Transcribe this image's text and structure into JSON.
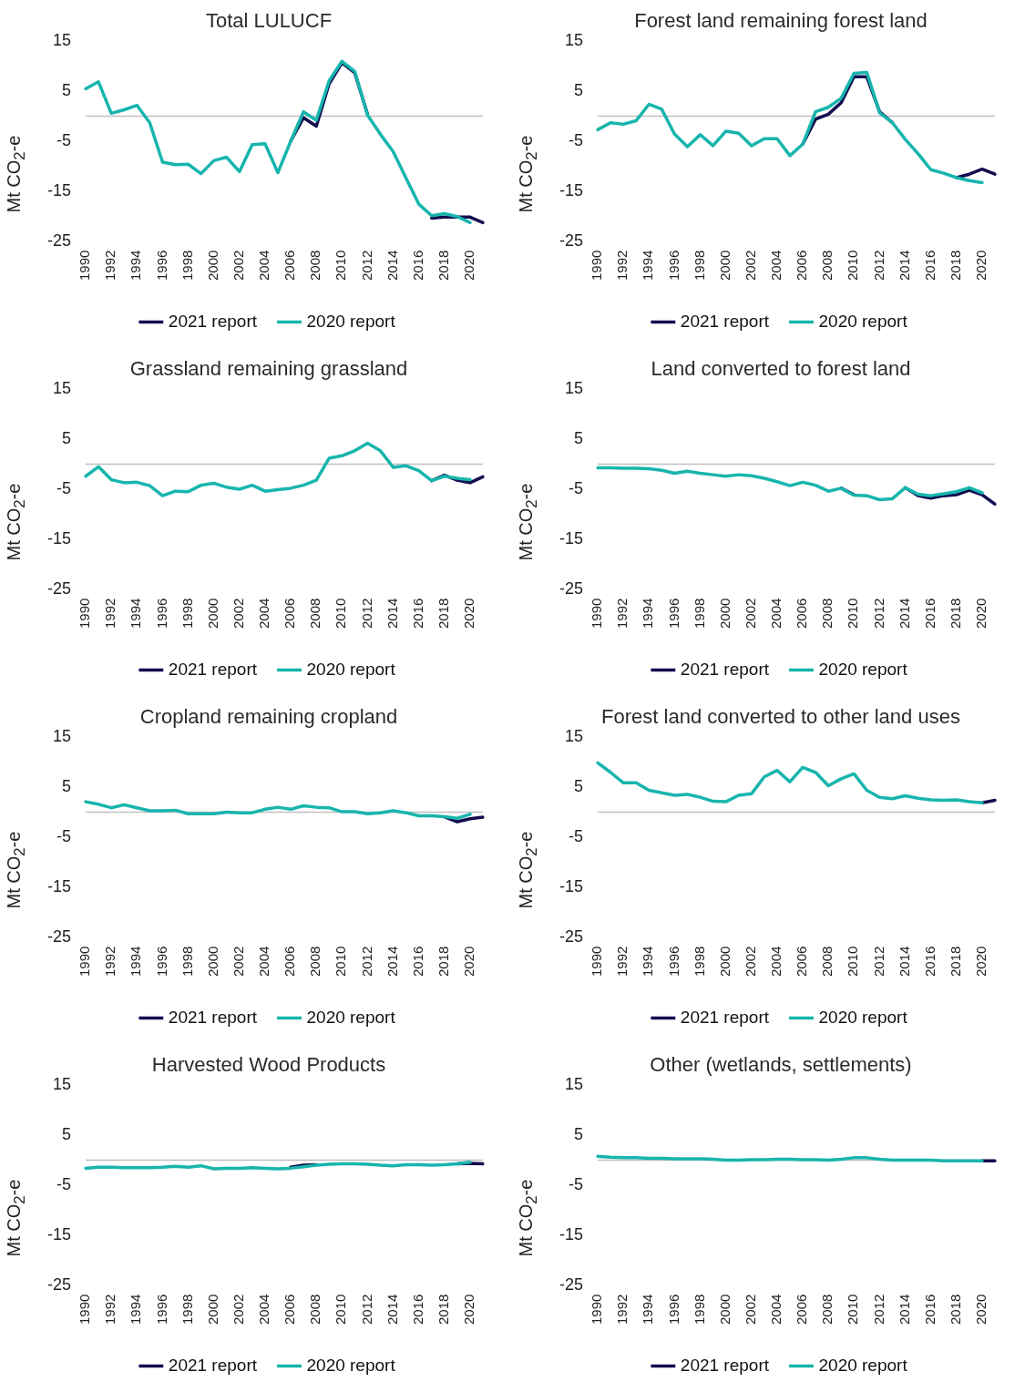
{
  "chart_data": [
    {
      "type": "line",
      "title": "Total LULUCF",
      "ylabel": "Mt CO$_{2}$-e",
      "categories": [
        "1990",
        null,
        "1992",
        null,
        "1994",
        null,
        "1996",
        null,
        "1998",
        null,
        "2000",
        null,
        "2002",
        null,
        "2004",
        null,
        "2006",
        null,
        "2008",
        null,
        "2010",
        null,
        "2012",
        null,
        "2014",
        null,
        "2016",
        null,
        "2018",
        null,
        "2020",
        null
      ],
      "series": [
        {
          "name": "2021 report",
          "color": "#120d4f",
          "values": [
            null,
            null,
            null,
            null,
            null,
            null,
            null,
            null,
            null,
            null,
            null,
            null,
            null,
            null,
            null,
            null,
            -5.0,
            -0.3,
            -2.0,
            6.5,
            10.7,
            8.7,
            0.4,
            null,
            null,
            null,
            null,
            -20.4,
            -20.2,
            -20.2,
            -20.2,
            -21.3
          ]
        },
        {
          "name": "2020 report",
          "color": "#17b5ad",
          "values": [
            5.5,
            6.9,
            0.6,
            1.3,
            2.2,
            -1.3,
            -9.2,
            -9.7,
            -9.6,
            -11.5,
            -8.9,
            -8.2,
            -11.1,
            -5.7,
            -5.5,
            -11.3,
            -5.0,
            0.9,
            -0.8,
            7.1,
            11.0,
            9.0,
            0.2,
            -3.6,
            -7.1,
            -12.4,
            -17.6,
            -19.9,
            -19.5,
            -20.1,
            -21.3,
            null
          ]
        }
      ],
      "ylim": [
        -25,
        15
      ],
      "yticks": [
        -25,
        -15,
        -5,
        5,
        15
      ],
      "legend": "bottom",
      "grid": false,
      "marker": "none",
      "ref_lines": [
        {
          "axis": "y",
          "value": 0,
          "color": "#bfbfbf"
        }
      ]
    },
    {
      "type": "line",
      "title": "Forest land remaining forest land",
      "ylabel": "Mt CO$_{2}$-e",
      "categories": [
        "1990",
        null,
        "1992",
        null,
        "1994",
        null,
        "1996",
        null,
        "1998",
        null,
        "2000",
        null,
        "2002",
        null,
        "2004",
        null,
        "2006",
        null,
        "2008",
        null,
        "2010",
        null,
        "2012",
        null,
        "2014",
        null,
        "2016",
        null,
        "2018",
        null,
        "2020",
        null
      ],
      "series": [
        {
          "name": "2021 report",
          "color": "#120d4f",
          "values": [
            null,
            null,
            null,
            null,
            null,
            null,
            null,
            null,
            null,
            null,
            null,
            null,
            null,
            null,
            null,
            null,
            -5.6,
            -0.6,
            0.4,
            2.7,
            7.9,
            7.9,
            0.9,
            -1.3,
            null,
            null,
            null,
            null,
            -12.3,
            -11.6,
            -10.6,
            -11.6
          ]
        },
        {
          "name": "2020 report",
          "color": "#17b5ad",
          "values": [
            -2.7,
            -1.3,
            -1.6,
            -0.9,
            2.4,
            1.4,
            -3.6,
            -6.1,
            -3.7,
            -5.9,
            -3.0,
            -3.4,
            -5.9,
            -4.5,
            -4.5,
            -7.9,
            -5.6,
            0.9,
            1.8,
            3.6,
            8.6,
            8.8,
            0.7,
            -1.3,
            -4.6,
            -7.5,
            -10.7,
            -11.4,
            -12.3,
            -12.9,
            -13.3,
            null
          ]
        }
      ],
      "ylim": [
        -25,
        15
      ],
      "yticks": [
        -25,
        -15,
        -5,
        5,
        15
      ],
      "legend": "bottom",
      "grid": false,
      "marker": "none",
      "ref_lines": [
        {
          "axis": "y",
          "value": 0,
          "color": "#bfbfbf"
        }
      ]
    },
    {
      "type": "line",
      "title": "Grassland remaining grassland",
      "ylabel": "Mt CO$_{2}$-e",
      "categories": [
        "1990",
        null,
        "1992",
        null,
        "1994",
        null,
        "1996",
        null,
        "1998",
        null,
        "2000",
        null,
        "2002",
        null,
        "2004",
        null,
        "2006",
        null,
        "2008",
        null,
        "2010",
        null,
        "2012",
        null,
        "2014",
        null,
        "2016",
        null,
        "2018",
        null,
        "2020",
        null
      ],
      "series": [
        {
          "name": "2021 report",
          "color": "#120d4f",
          "values": [
            null,
            null,
            null,
            null,
            null,
            null,
            null,
            null,
            null,
            null,
            null,
            null,
            null,
            null,
            null,
            null,
            null,
            null,
            null,
            null,
            null,
            null,
            null,
            null,
            null,
            null,
            null,
            -3.3,
            -2.2,
            -3.2,
            -3.7,
            -2.5
          ]
        },
        {
          "name": "2020 report",
          "color": "#17b5ad",
          "values": [
            -2.4,
            -0.5,
            -3.1,
            -3.7,
            -3.6,
            -4.3,
            -6.3,
            -5.4,
            -5.5,
            -4.2,
            -3.8,
            -4.6,
            -5.0,
            -4.2,
            -5.4,
            -5.1,
            -4.8,
            -4.2,
            -3.2,
            1.2,
            1.7,
            2.7,
            4.2,
            2.7,
            -0.6,
            -0.3,
            -1.3,
            -3.3,
            -2.4,
            -2.8,
            -3.1,
            null
          ]
        }
      ],
      "ylim": [
        -25,
        15
      ],
      "yticks": [
        -25,
        -15,
        -5,
        5,
        15
      ],
      "legend": "bottom",
      "grid": false,
      "marker": "none",
      "ref_lines": [
        {
          "axis": "y",
          "value": 0,
          "color": "#bfbfbf"
        }
      ]
    },
    {
      "type": "line",
      "title": "Land converted to forest land",
      "ylabel": "Mt CO$_{2}$-e",
      "categories": [
        "1990",
        null,
        "1992",
        null,
        "1994",
        null,
        "1996",
        null,
        "1998",
        null,
        "2000",
        null,
        "2002",
        null,
        "2004",
        null,
        "2006",
        null,
        "2008",
        null,
        "2010",
        null,
        "2012",
        null,
        "2014",
        null,
        "2016",
        null,
        "2018",
        null,
        "2020",
        null
      ],
      "series": [
        {
          "name": "2021 report",
          "color": "#120d4f",
          "values": [
            null,
            null,
            null,
            null,
            null,
            null,
            null,
            null,
            null,
            null,
            null,
            null,
            null,
            null,
            null,
            null,
            null,
            null,
            null,
            -4.8,
            -6.1,
            null,
            null,
            null,
            -4.7,
            -6.3,
            -6.8,
            -6.3,
            -6.1,
            -5.2,
            -6.1,
            -8.0
          ]
        },
        {
          "name": "2020 report",
          "color": "#17b5ad",
          "values": [
            -0.7,
            -0.7,
            -0.8,
            -0.8,
            -0.9,
            -1.2,
            -1.8,
            -1.4,
            -1.8,
            -2.1,
            -2.4,
            -2.1,
            -2.3,
            -2.8,
            -3.5,
            -4.3,
            -3.6,
            -4.2,
            -5.4,
            -4.8,
            -6.2,
            -6.3,
            -7.1,
            -6.9,
            -4.7,
            -6.0,
            -6.3,
            -5.9,
            -5.5,
            -4.7,
            -5.7,
            null
          ]
        }
      ],
      "ylim": [
        -25,
        15
      ],
      "yticks": [
        -25,
        -15,
        -5,
        5,
        15
      ],
      "legend": "bottom",
      "grid": false,
      "marker": "none",
      "ref_lines": [
        {
          "axis": "y",
          "value": 0,
          "color": "#bfbfbf"
        }
      ]
    },
    {
      "type": "line",
      "title": "Cropland remaining cropland",
      "ylabel": "Mt CO$_{2}$-e",
      "categories": [
        "1990",
        null,
        "1992",
        null,
        "1994",
        null,
        "1996",
        null,
        "1998",
        null,
        "2000",
        null,
        "2002",
        null,
        "2004",
        null,
        "2006",
        null,
        "2008",
        null,
        "2010",
        null,
        "2012",
        null,
        "2014",
        null,
        "2016",
        null,
        "2018",
        null,
        "2020",
        null
      ],
      "series": [
        {
          "name": "2021 report",
          "color": "#120d4f",
          "values": [
            null,
            null,
            null,
            null,
            null,
            null,
            null,
            null,
            null,
            null,
            null,
            null,
            null,
            null,
            null,
            null,
            null,
            null,
            null,
            null,
            null,
            null,
            null,
            null,
            null,
            null,
            null,
            null,
            -0.9,
            -1.9,
            -1.3,
            -1.0
          ]
        },
        {
          "name": "2020 report",
          "color": "#17b5ad",
          "values": [
            2.1,
            1.6,
            0.9,
            1.5,
            0.9,
            0.3,
            0.3,
            0.4,
            -0.3,
            -0.3,
            -0.3,
            0.0,
            -0.1,
            -0.1,
            0.6,
            1.0,
            0.6,
            1.3,
            1.0,
            0.9,
            0.1,
            0.1,
            -0.3,
            -0.1,
            0.3,
            -0.1,
            -0.7,
            -0.7,
            -0.9,
            -1.2,
            -0.4,
            null
          ]
        }
      ],
      "ylim": [
        -25,
        15
      ],
      "yticks": [
        -25,
        -15,
        -5,
        5,
        15
      ],
      "legend": "bottom",
      "grid": false,
      "marker": "none",
      "ref_lines": [
        {
          "axis": "y",
          "value": 0,
          "color": "#bfbfbf"
        }
      ]
    },
    {
      "type": "line",
      "title": "Forest land converted to other land uses",
      "ylabel": "Mt CO$_{2}$-e",
      "categories": [
        "1990",
        null,
        "1992",
        null,
        "1994",
        null,
        "1996",
        null,
        "1998",
        null,
        "2000",
        null,
        "2002",
        null,
        "2004",
        null,
        "2006",
        null,
        "2008",
        null,
        "2010",
        null,
        "2012",
        null,
        "2014",
        null,
        "2016",
        null,
        "2018",
        null,
        "2020",
        null
      ],
      "series": [
        {
          "name": "2021 report",
          "color": "#120d4f",
          "values": [
            null,
            null,
            null,
            null,
            null,
            null,
            null,
            null,
            null,
            null,
            null,
            null,
            null,
            null,
            null,
            null,
            null,
            null,
            null,
            null,
            null,
            null,
            null,
            null,
            null,
            null,
            null,
            null,
            null,
            null,
            1.9,
            2.4
          ]
        },
        {
          "name": "2020 report",
          "color": "#17b5ad",
          "values": [
            9.9,
            8.0,
            5.9,
            5.9,
            4.4,
            3.9,
            3.4,
            3.6,
            3.0,
            2.2,
            2.1,
            3.4,
            3.7,
            7.1,
            8.4,
            6.1,
            9.0,
            8.0,
            5.3,
            6.7,
            7.7,
            4.4,
            3.0,
            2.7,
            3.3,
            2.8,
            2.5,
            2.4,
            2.5,
            2.1,
            1.9,
            null
          ]
        }
      ],
      "ylim": [
        -25,
        15
      ],
      "yticks": [
        -25,
        -15,
        -5,
        5,
        15
      ],
      "legend": "bottom",
      "grid": false,
      "marker": "none",
      "ref_lines": [
        {
          "axis": "y",
          "value": 0,
          "color": "#bfbfbf"
        }
      ]
    },
    {
      "type": "line",
      "title": "Harvested Wood Products",
      "ylabel": "Mt CO$_{2}$-e",
      "categories": [
        "1990",
        null,
        "1992",
        null,
        "1994",
        null,
        "1996",
        null,
        "1998",
        null,
        "2000",
        null,
        "2002",
        null,
        "2004",
        null,
        "2006",
        null,
        "2008",
        null,
        "2010",
        null,
        "2012",
        null,
        "2014",
        null,
        "2016",
        null,
        "2018",
        null,
        "2020",
        null
      ],
      "series": [
        {
          "name": "2021 report",
          "color": "#120d4f",
          "values": [
            null,
            null,
            null,
            null,
            null,
            null,
            null,
            null,
            null,
            null,
            null,
            null,
            null,
            null,
            null,
            null,
            -1.4,
            -1.0,
            -0.9,
            null,
            null,
            null,
            null,
            null,
            null,
            null,
            null,
            null,
            null,
            -0.7,
            -0.6,
            -0.7
          ]
        },
        {
          "name": "2020 report",
          "color": "#17b5ad",
          "values": [
            -1.6,
            -1.4,
            -1.4,
            -1.5,
            -1.5,
            -1.5,
            -1.4,
            -1.2,
            -1.4,
            -1.1,
            -1.7,
            -1.6,
            -1.6,
            -1.5,
            -1.6,
            -1.7,
            -1.6,
            -1.3,
            -1.0,
            -0.8,
            -0.7,
            -0.7,
            -0.8,
            -1.0,
            -1.1,
            -0.9,
            -0.9,
            -1.0,
            -0.9,
            -0.7,
            -0.4,
            null
          ]
        }
      ],
      "ylim": [
        -25,
        15
      ],
      "yticks": [
        -25,
        -15,
        -5,
        5,
        15
      ],
      "legend": "bottom",
      "grid": false,
      "marker": "none",
      "ref_lines": [
        {
          "axis": "y",
          "value": 0,
          "color": "#bfbfbf"
        }
      ]
    },
    {
      "type": "line",
      "title": "Other (wetlands, settlements)",
      "ylabel": "Mt CO$_{2}$-e",
      "categories": [
        "1990",
        null,
        "1992",
        null,
        "1994",
        null,
        "1996",
        null,
        "1998",
        null,
        "2000",
        null,
        "2002",
        null,
        "2004",
        null,
        "2006",
        null,
        "2008",
        null,
        "2010",
        null,
        "2012",
        null,
        "2014",
        null,
        "2016",
        null,
        "2018",
        null,
        "2020",
        null
      ],
      "series": [
        {
          "name": "2021 report",
          "color": "#120d4f",
          "values": [
            null,
            null,
            null,
            null,
            null,
            null,
            null,
            null,
            null,
            null,
            null,
            null,
            null,
            null,
            null,
            null,
            null,
            null,
            null,
            null,
            null,
            null,
            null,
            null,
            null,
            null,
            null,
            null,
            null,
            null,
            -0.1,
            -0.1
          ]
        },
        {
          "name": "2020 report",
          "color": "#17b5ad",
          "values": [
            0.8,
            0.6,
            0.5,
            0.5,
            0.4,
            0.4,
            0.3,
            0.3,
            0.3,
            0.2,
            0.0,
            0.0,
            0.1,
            0.1,
            0.2,
            0.2,
            0.1,
            0.1,
            0.0,
            0.2,
            0.5,
            0.5,
            0.2,
            0.0,
            0.0,
            0.0,
            0.0,
            -0.1,
            -0.1,
            -0.1,
            -0.1,
            null
          ]
        }
      ],
      "ylim": [
        -25,
        15
      ],
      "yticks": [
        -25,
        -15,
        -5,
        5,
        15
      ],
      "legend": "bottom",
      "grid": false,
      "marker": "none",
      "ref_lines": [
        {
          "axis": "y",
          "value": 0,
          "color": "#bfbfbf"
        }
      ]
    }
  ]
}
